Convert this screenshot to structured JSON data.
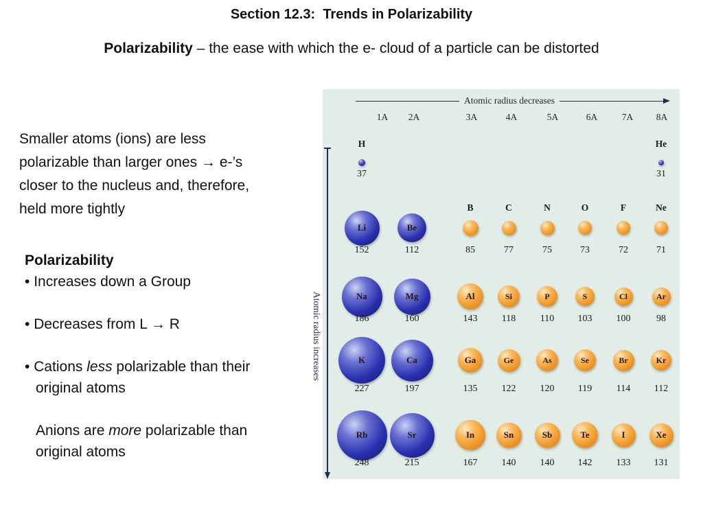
{
  "slide": {
    "title": "Section 12.3:  Trends in Polarizability",
    "subtitle_term": "Polarizability",
    "subtitle_rest": " – the ease with which the e- cloud of a particle can be distorted",
    "note": "Smaller atoms (ions) are less\npolarizable than larger ones → e-’s\ncloser to the nucleus and, therefore,\nheld more tightly"
  },
  "points": {
    "heading": "Polarizability",
    "bullet_glyph": "•",
    "items": [
      {
        "bullet": true,
        "indent": false,
        "gap": false,
        "segments": [
          {
            "text": "Increases down a Group",
            "italic": false
          }
        ]
      },
      {
        "bullet": true,
        "indent": false,
        "gap": true,
        "segments": [
          {
            "text": "Decreases from L → R",
            "italic": false
          }
        ]
      },
      {
        "bullet": true,
        "indent": false,
        "gap": true,
        "segments": [
          {
            "text": "Cations ",
            "italic": false
          },
          {
            "text": "less",
            "italic": true
          },
          {
            "text": " polarizable than their",
            "italic": false
          }
        ]
      },
      {
        "bullet": false,
        "indent": true,
        "gap": false,
        "segments": [
          {
            "text": "original atoms",
            "italic": false
          }
        ]
      },
      {
        "bullet": false,
        "indent": true,
        "gap": true,
        "segments": [
          {
            "text": "Anions are ",
            "italic": false
          },
          {
            "text": "more",
            "italic": true
          },
          {
            "text": " polarizable than",
            "italic": false
          }
        ]
      },
      {
        "bullet": false,
        "indent": true,
        "gap": false,
        "segments": [
          {
            "text": "original atoms",
            "italic": false
          }
        ]
      }
    ]
  },
  "chart_data": {
    "type": "table",
    "title": "Atomic radii of the representative elements",
    "top_axis_label": "Atomic radius decreases",
    "left_axis_label": "Atomic radius increases",
    "group_headers": [
      "1A",
      "2A",
      "3A",
      "4A",
      "5A",
      "6A",
      "7A",
      "8A"
    ],
    "colors": {
      "metal_sphere": "#2a30ae",
      "nonmetal_sphere": "#ef9526",
      "figure_bg": "#e3ede8"
    },
    "elements": [
      {
        "symbol": "H",
        "radius": 37,
        "group": "1A",
        "period": 1,
        "color": "blue",
        "label_outside": true
      },
      {
        "symbol": "He",
        "radius": 31,
        "group": "8A",
        "period": 1,
        "color": "blue",
        "label_outside": true
      },
      {
        "symbol": "Li",
        "radius": 152,
        "group": "1A",
        "period": 2,
        "color": "blue",
        "label_outside": false
      },
      {
        "symbol": "Be",
        "radius": 112,
        "group": "2A",
        "period": 2,
        "color": "blue",
        "label_outside": false
      },
      {
        "symbol": "B",
        "radius": 85,
        "group": "3A",
        "period": 2,
        "color": "orange",
        "label_outside": true
      },
      {
        "symbol": "C",
        "radius": 77,
        "group": "4A",
        "period": 2,
        "color": "orange",
        "label_outside": true
      },
      {
        "symbol": "N",
        "radius": 75,
        "group": "5A",
        "period": 2,
        "color": "orange",
        "label_outside": true
      },
      {
        "symbol": "O",
        "radius": 73,
        "group": "6A",
        "period": 2,
        "color": "orange",
        "label_outside": true
      },
      {
        "symbol": "F",
        "radius": 72,
        "group": "7A",
        "period": 2,
        "color": "orange",
        "label_outside": true
      },
      {
        "symbol": "Ne",
        "radius": 71,
        "group": "8A",
        "period": 2,
        "color": "orange",
        "label_outside": true
      },
      {
        "symbol": "Na",
        "radius": 186,
        "group": "1A",
        "period": 3,
        "color": "blue",
        "label_outside": false
      },
      {
        "symbol": "Mg",
        "radius": 160,
        "group": "2A",
        "period": 3,
        "color": "blue",
        "label_outside": false
      },
      {
        "symbol": "Al",
        "radius": 143,
        "group": "3A",
        "period": 3,
        "color": "orange",
        "label_outside": false
      },
      {
        "symbol": "Si",
        "radius": 118,
        "group": "4A",
        "period": 3,
        "color": "orange",
        "label_outside": false
      },
      {
        "symbol": "P",
        "radius": 110,
        "group": "5A",
        "period": 3,
        "color": "orange",
        "label_outside": false
      },
      {
        "symbol": "S",
        "radius": 103,
        "group": "6A",
        "period": 3,
        "color": "orange",
        "label_outside": false
      },
      {
        "symbol": "Cl",
        "radius": 100,
        "group": "7A",
        "period": 3,
        "color": "orange",
        "label_outside": false
      },
      {
        "symbol": "Ar",
        "radius": 98,
        "group": "8A",
        "period": 3,
        "color": "orange",
        "label_outside": false
      },
      {
        "symbol": "K",
        "radius": 227,
        "group": "1A",
        "period": 4,
        "color": "blue",
        "label_outside": false
      },
      {
        "symbol": "Ca",
        "radius": 197,
        "group": "2A",
        "period": 4,
        "color": "blue",
        "label_outside": false
      },
      {
        "symbol": "Ga",
        "radius": 135,
        "group": "3A",
        "period": 4,
        "color": "orange",
        "label_outside": false
      },
      {
        "symbol": "Ge",
        "radius": 122,
        "group": "4A",
        "period": 4,
        "color": "orange",
        "label_outside": false
      },
      {
        "symbol": "As",
        "radius": 120,
        "group": "5A",
        "period": 4,
        "color": "orange",
        "label_outside": false
      },
      {
        "symbol": "Se",
        "radius": 119,
        "group": "6A",
        "period": 4,
        "color": "orange",
        "label_outside": false
      },
      {
        "symbol": "Br",
        "radius": 114,
        "group": "7A",
        "period": 4,
        "color": "orange",
        "label_outside": false
      },
      {
        "symbol": "Kr",
        "radius": 112,
        "group": "8A",
        "period": 4,
        "color": "orange",
        "label_outside": false
      },
      {
        "symbol": "Rb",
        "radius": 248,
        "group": "1A",
        "period": 5,
        "color": "blue",
        "label_outside": false
      },
      {
        "symbol": "Sr",
        "radius": 215,
        "group": "2A",
        "period": 5,
        "color": "blue",
        "label_outside": false
      },
      {
        "symbol": "In",
        "radius": 167,
        "group": "3A",
        "period": 5,
        "color": "orange",
        "label_outside": false
      },
      {
        "symbol": "Sn",
        "radius": 140,
        "group": "4A",
        "period": 5,
        "color": "orange",
        "label_outside": false
      },
      {
        "symbol": "Sb",
        "radius": 140,
        "group": "5A",
        "period": 5,
        "color": "orange",
        "label_outside": false
      },
      {
        "symbol": "Te",
        "radius": 142,
        "group": "6A",
        "period": 5,
        "color": "orange",
        "label_outside": false
      },
      {
        "symbol": "I",
        "radius": 133,
        "group": "7A",
        "period": 5,
        "color": "orange",
        "label_outside": false
      },
      {
        "symbol": "Xe",
        "radius": 131,
        "group": "8A",
        "period": 5,
        "color": "orange",
        "label_outside": false
      }
    ]
  }
}
